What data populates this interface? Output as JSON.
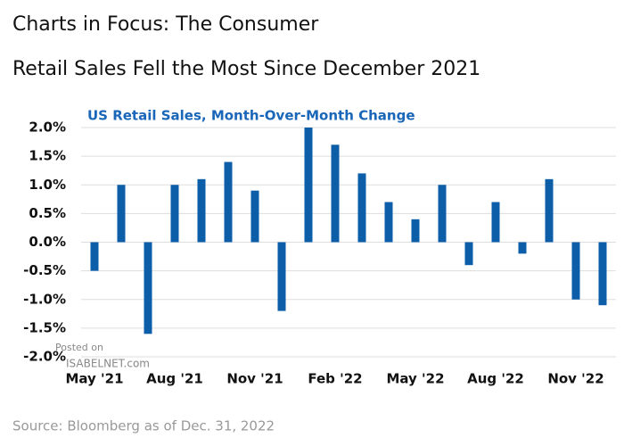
{
  "header": {
    "title_line1": "Charts in Focus: The Consumer",
    "title_line2": "Retail Sales Fell the Most Since December 2021"
  },
  "chart_data": {
    "type": "bar",
    "title": "US Retail Sales, Month-Over-Month Change",
    "categories": [
      "May '21",
      null,
      null,
      "Aug '21",
      null,
      null,
      "Nov '21",
      null,
      null,
      "Feb '22",
      null,
      null,
      "May '22",
      null,
      null,
      "Aug '22",
      null,
      null,
      "Nov '22",
      null
    ],
    "values": [
      -0.5,
      1.0,
      -1.6,
      1.0,
      1.1,
      1.4,
      0.9,
      -1.2,
      2.0,
      1.7,
      1.2,
      0.7,
      0.4,
      1.0,
      -0.4,
      0.7,
      -0.2,
      1.1,
      -1.0,
      -1.1
    ],
    "color": "#0d5ea8",
    "ylim": [
      -2.0,
      2.0
    ],
    "yticks": [
      {
        "value": 2.0,
        "label": "2.0%"
      },
      {
        "value": 1.5,
        "label": "1.5%"
      },
      {
        "value": 1.0,
        "label": "1.0%"
      },
      {
        "value": 0.5,
        "label": "0.5%"
      },
      {
        "value": 0.0,
        "label": "0.0%"
      },
      {
        "value": -0.5,
        "label": "-0.5%"
      },
      {
        "value": -1.0,
        "label": "-1.0%"
      },
      {
        "value": -1.5,
        "label": "-1.5%"
      },
      {
        "value": -2.0,
        "label": "-2.0%"
      }
    ],
    "grid": true
  },
  "watermark": [
    "Posted on",
    "ISABELNET.com"
  ],
  "source": "Source: Bloomberg as of Dec. 31, 2022"
}
